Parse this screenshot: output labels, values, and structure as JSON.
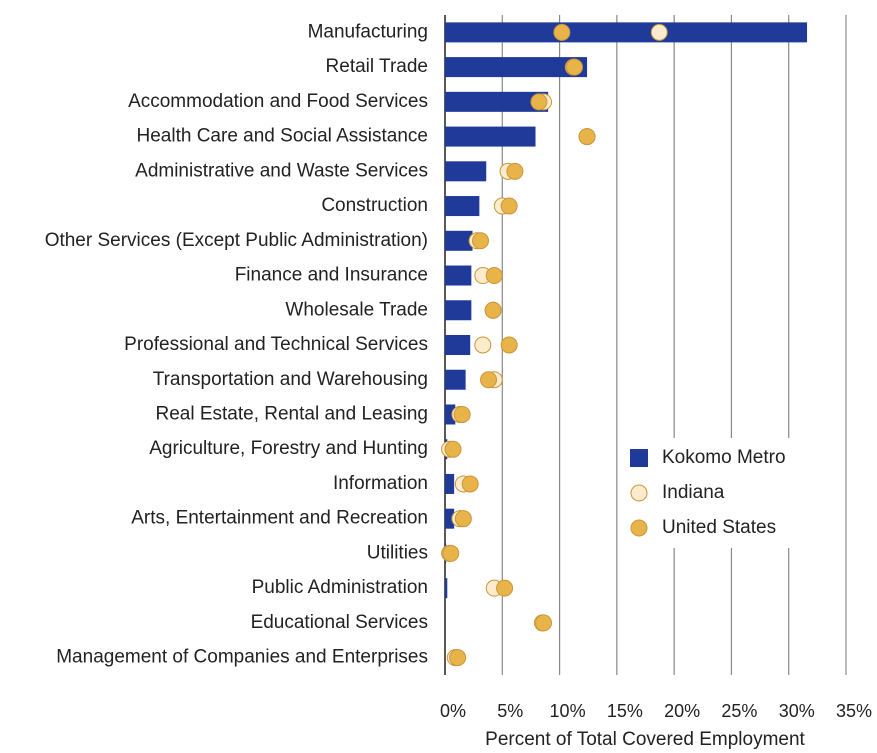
{
  "chart_data": {
    "type": "bar_dot",
    "xlabel": "Percent of Total Covered Employment",
    "categories": [
      "Manufacturing",
      "Retail Trade",
      "Accommodation and Food Services",
      "Health Care and Social Assistance",
      "Administrative and Waste Services",
      "Construction",
      "Other Services (Except Public Administration)",
      "Finance and Insurance",
      "Wholesale Trade",
      "Professional and Technical Services",
      "Transportation and Warehousing",
      "Real Estate, Rental and Leasing",
      "Agriculture, Forestry and Hunting",
      "Information",
      "Arts, Entertainment and Recreation",
      "Utilities",
      "Public Administration",
      "Educational Services",
      "Management of Companies and Enterprises"
    ],
    "series": [
      {
        "name": "Kokomo Metro",
        "color": "#1f3a98",
        "mark": "bar",
        "values": [
          31.6,
          12.4,
          9.0,
          7.9,
          3.6,
          3.0,
          2.4,
          2.3,
          2.3,
          2.2,
          1.8,
          0.9,
          0.2,
          0.8,
          0.8,
          0.1,
          0.2,
          0,
          0
        ]
      },
      {
        "name": "Indiana",
        "color": "#fcebcd",
        "mark": "dot",
        "values": [
          18.7,
          11.2,
          8.6,
          12.4,
          5.5,
          5.0,
          2.8,
          3.3,
          4.2,
          3.3,
          4.3,
          1.3,
          0.4,
          1.6,
          1.3,
          0.4,
          4.3,
          8.5,
          0.9
        ]
      },
      {
        "name": "United States",
        "color": "#e8b44a",
        "mark": "dot",
        "values": [
          10.2,
          11.3,
          8.2,
          12.4,
          6.1,
          5.6,
          3.1,
          4.3,
          4.2,
          5.6,
          3.8,
          1.5,
          0.7,
          2.2,
          1.6,
          0.5,
          5.2,
          8.6,
          1.1
        ]
      }
    ],
    "xlim": [
      0,
      35
    ],
    "xticks": [
      {
        "value": 0,
        "label": "0%"
      },
      {
        "value": 5,
        "label": "5%"
      },
      {
        "value": 10,
        "label": "10%"
      },
      {
        "value": 15,
        "label": "15%"
      },
      {
        "value": 20,
        "label": "20%"
      },
      {
        "value": 25,
        "label": "25%"
      },
      {
        "value": 30,
        "label": "30%"
      },
      {
        "value": 35,
        "label": "35%"
      }
    ],
    "grid": true
  }
}
